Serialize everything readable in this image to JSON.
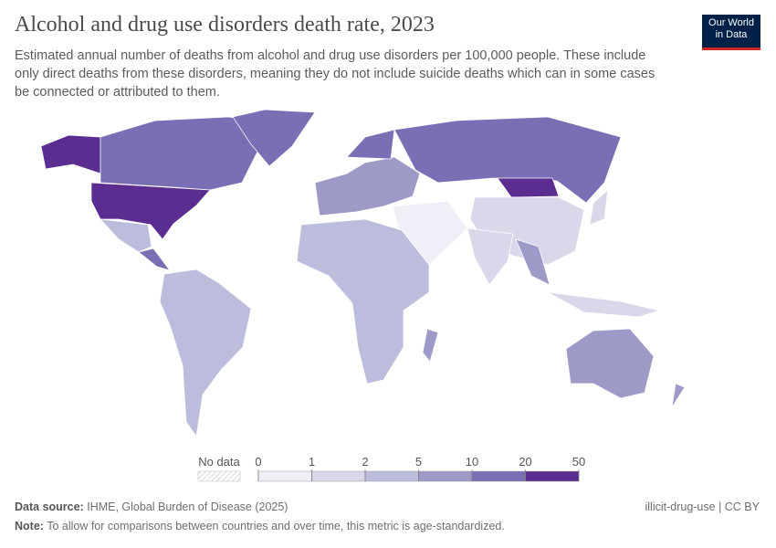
{
  "header": {
    "title": "Alcohol and drug use disorders death rate, 2023",
    "subtitle": "Estimated annual number of deaths from alcohol and drug use disorders per 100,000 people. These include only direct deaths from these disorders, meaning they do not include suicide deaths which can in some cases be connected or attributed to them.",
    "logo": [
      "Our World",
      "in Data"
    ]
  },
  "legend": {
    "no_data": "No data",
    "ticks": [
      0,
      1,
      2,
      5,
      10,
      20,
      50
    ],
    "colors": [
      "#f0eff7",
      "#d9d8ea",
      "#bcbddc",
      "#9e9ac8",
      "#7a6fb5",
      "#5b2d91"
    ]
  },
  "footer": {
    "source_label": "Data source:",
    "source": "IHME, Global Burden of Disease (2025)",
    "note_label": "Note:",
    "note": "To allow for comparisons between countries and over time, this metric is age-standardized.",
    "slug_license": "illicit-drug-use | CC BY"
  }
}
